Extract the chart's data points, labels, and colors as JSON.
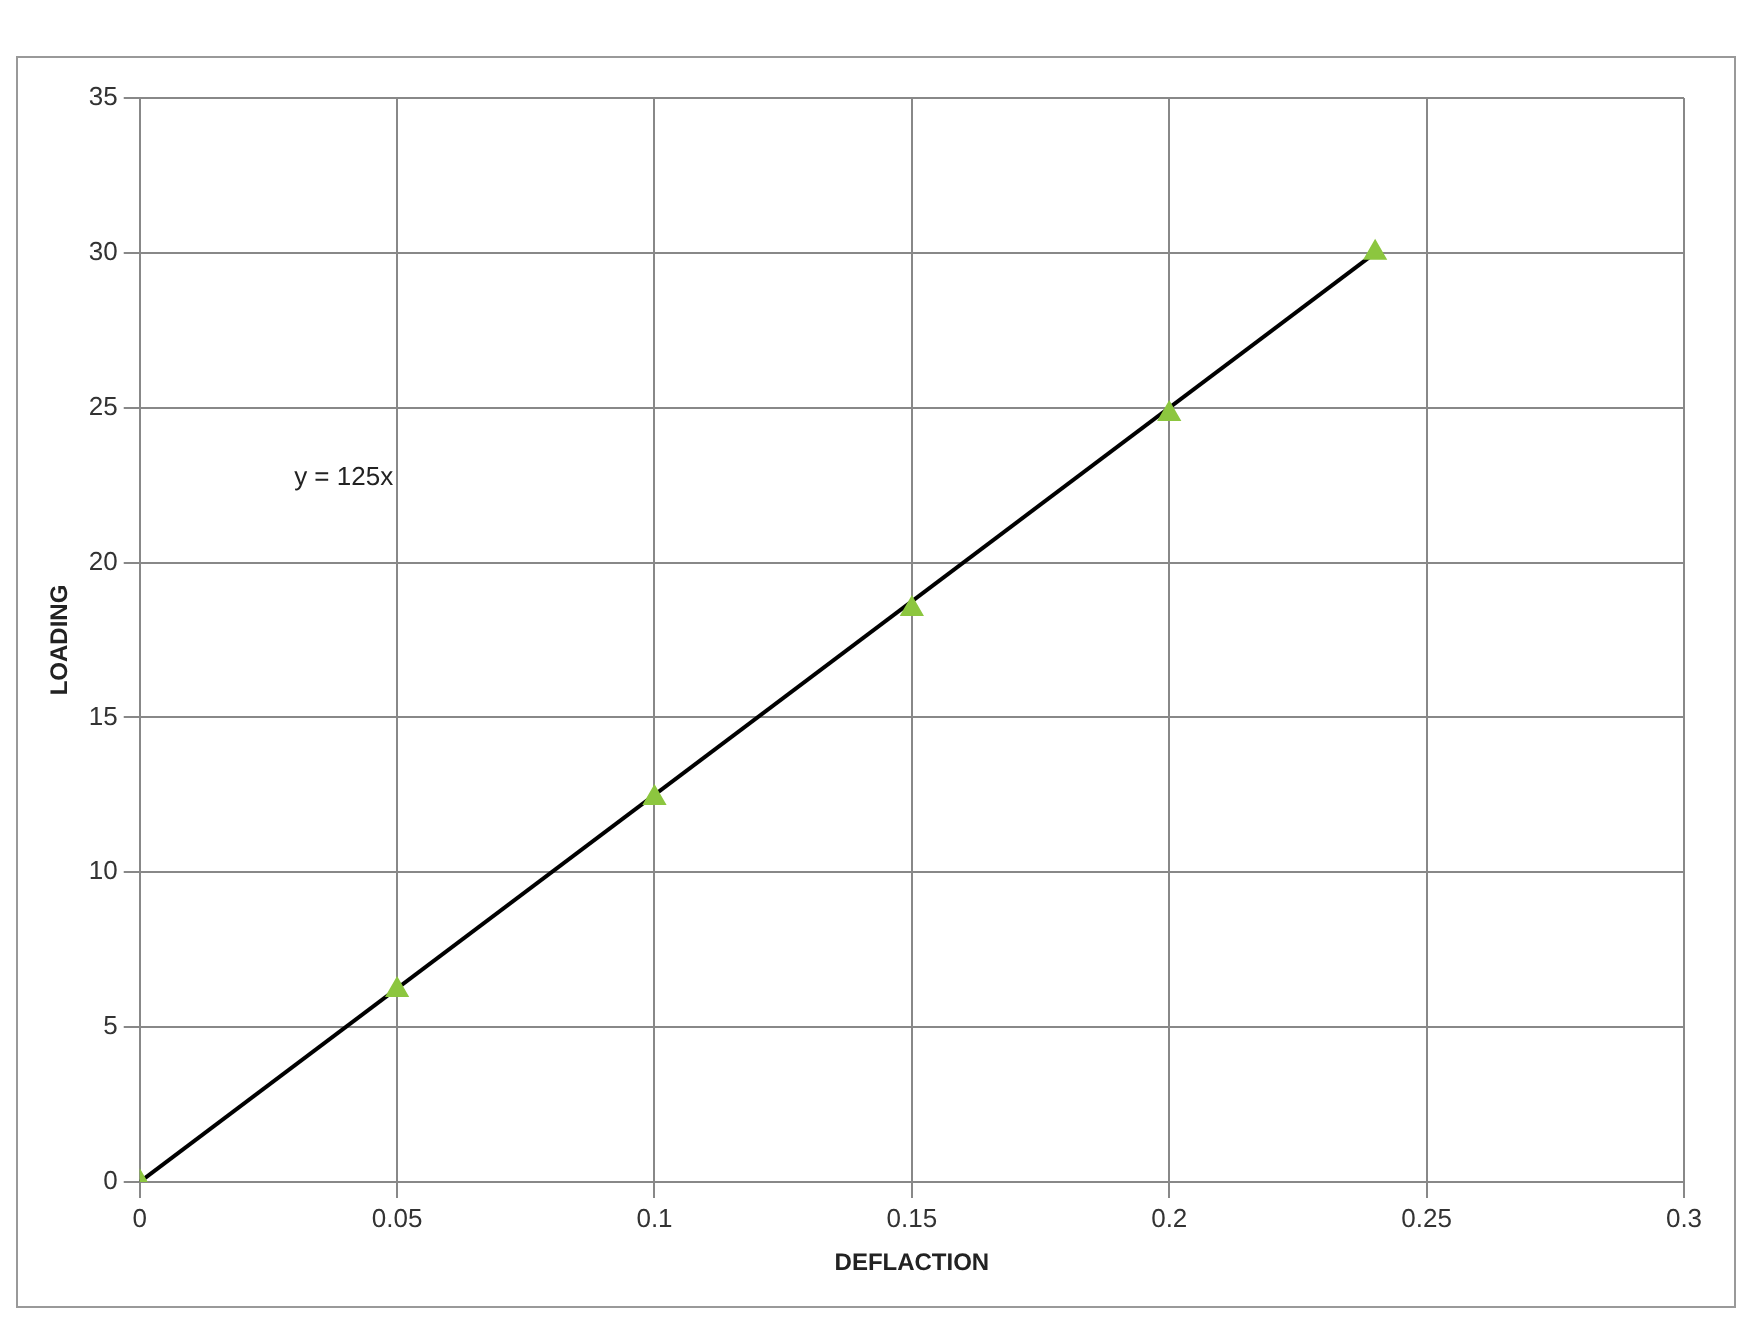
{
  "chart_data": {
    "type": "scatter",
    "xlabel": "DEFLACTION",
    "ylabel": "LOADING",
    "marker": "triangle",
    "grid": true,
    "legend": false,
    "x": [
      0,
      0.05,
      0.1,
      0.15,
      0.2,
      0.24
    ],
    "series": [
      {
        "color": "#8cc63f",
        "values": [
          0,
          6.2,
          12.4,
          18.5,
          24.8,
          30
        ]
      },
      {
        "type": "line",
        "color": "#000000",
        "x": [
          0,
          0.24
        ],
        "values": [
          0,
          30
        ],
        "marker": "none"
      }
    ],
    "annotations": [
      "y = 125x"
    ],
    "xlim": [
      0,
      0.3
    ],
    "xticks": [
      0,
      0.05,
      0.1,
      0.15,
      0.2,
      0.25,
      0.3
    ],
    "ylim": [
      0,
      35
    ],
    "yticks": [
      0,
      5,
      10,
      15,
      20,
      25,
      30,
      35
    ]
  }
}
